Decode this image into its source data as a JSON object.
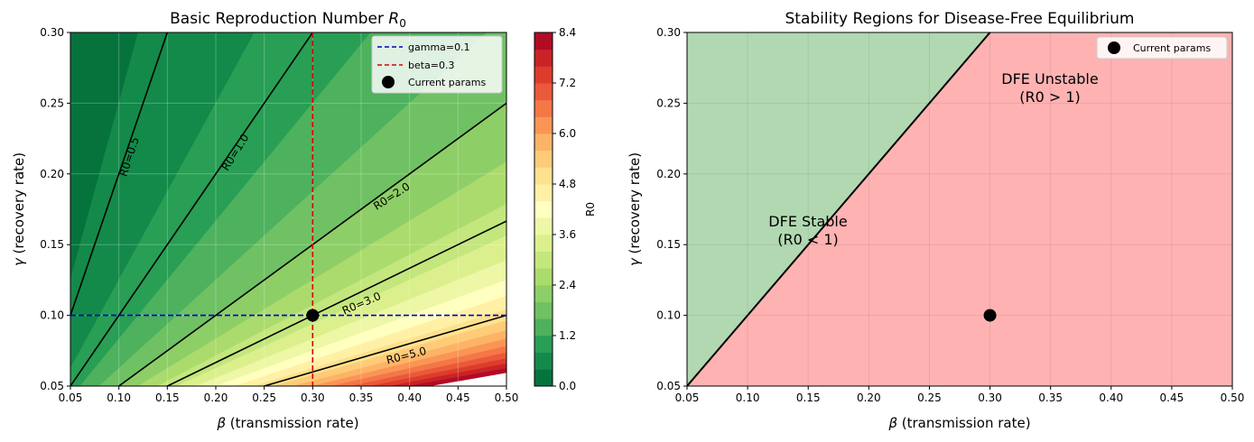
{
  "chart_data": [
    {
      "type": "heatmap",
      "title": "Basic Reproduction Number ",
      "title_symbol": "R",
      "title_subscript": "0",
      "xlabel_symbol": "β",
      "xlabel": " (transmission rate)",
      "ylabel_symbol": "γ",
      "ylabel": " (recovery rate)",
      "xlim": [
        0.05,
        0.5
      ],
      "ylim": [
        0.05,
        0.3
      ],
      "xticks": [
        "0.05",
        "0.10",
        "0.15",
        "0.20",
        "0.25",
        "0.30",
        "0.35",
        "0.40",
        "0.45",
        "0.50"
      ],
      "yticks": [
        "0.05",
        "0.10",
        "0.15",
        "0.20",
        "0.25",
        "0.30"
      ],
      "grid": true,
      "colormap": "RdYlGn_r",
      "colorbar": {
        "label": "R0",
        "range": [
          0,
          8.4
        ],
        "ticks": [
          "0.0",
          "1.2",
          "2.4",
          "3.6",
          "4.8",
          "6.0",
          "7.2",
          "8.4"
        ],
        "levels": 21
      },
      "contours": [
        {
          "value": 0.5,
          "label": "R0=0.5"
        },
        {
          "value": 1.0,
          "label": "R0=1.0"
        },
        {
          "value": 2.0,
          "label": "R0=2.0"
        },
        {
          "value": 3.0,
          "label": "R0=3.0"
        },
        {
          "value": 5.0,
          "label": "R0=5.0"
        }
      ],
      "reference_lines": [
        {
          "orientation": "horizontal",
          "value": 0.1,
          "label": "gamma=0.1",
          "color": "#0000cc"
        },
        {
          "orientation": "vertical",
          "value": 0.3,
          "label": "beta=0.3",
          "color": "#dd0000"
        }
      ],
      "point": {
        "x": 0.3,
        "y": 0.1,
        "label": "Current params"
      },
      "legend_position": "top-right"
    },
    {
      "type": "area",
      "title": "Stability Regions for Disease-Free Equilibrium",
      "xlabel_symbol": "β",
      "xlabel": " (transmission rate)",
      "ylabel_symbol": "γ",
      "ylabel": " (recovery rate)",
      "xlim": [
        0.05,
        0.5
      ],
      "ylim": [
        0.05,
        0.3
      ],
      "xticks": [
        "0.05",
        "0.10",
        "0.15",
        "0.20",
        "0.25",
        "0.30",
        "0.35",
        "0.40",
        "0.45",
        "0.50"
      ],
      "yticks": [
        "0.05",
        "0.10",
        "0.15",
        "0.20",
        "0.25",
        "0.30"
      ],
      "grid": true,
      "boundary": "R0 = 1 (gamma = beta)",
      "regions": [
        {
          "name": "stable",
          "line1": "DFE Stable",
          "line2": "(R0 < 1)",
          "at": [
            0.125,
            0.16
          ],
          "color": "#b2d8b2"
        },
        {
          "name": "unstable",
          "line1": "DFE Unstable",
          "line2": "(R0 > 1)",
          "at": [
            0.35,
            0.265
          ],
          "color": "#ffb2b2"
        }
      ],
      "point": {
        "x": 0.3,
        "y": 0.1,
        "label": "Current params"
      },
      "legend_position": "top-right"
    }
  ]
}
